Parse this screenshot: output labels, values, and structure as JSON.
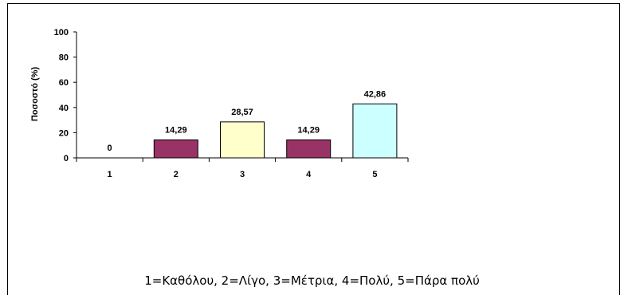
{
  "chart_data": {
    "type": "bar",
    "categories": [
      "1",
      "2",
      "3",
      "4",
      "5"
    ],
    "values": [
      0,
      14.29,
      28.57,
      14.29,
      42.86
    ],
    "value_labels": [
      "0",
      "14,29",
      "28,57",
      "14,29",
      "42,86"
    ],
    "colors": [
      "#993366",
      "#993366",
      "#FFFFCC",
      "#993366",
      "#CCFFFF"
    ],
    "ylabel": "Ποσοστό (%)",
    "ylim": [
      0,
      100
    ],
    "yticks": [
      "0",
      "20",
      "40",
      "60",
      "80",
      "100"
    ],
    "grid": false
  },
  "caption": "1=Καθόλου, 2=Λίγο, 3=Μέτρια, 4=Πολύ, 5=Πάρα πολύ"
}
